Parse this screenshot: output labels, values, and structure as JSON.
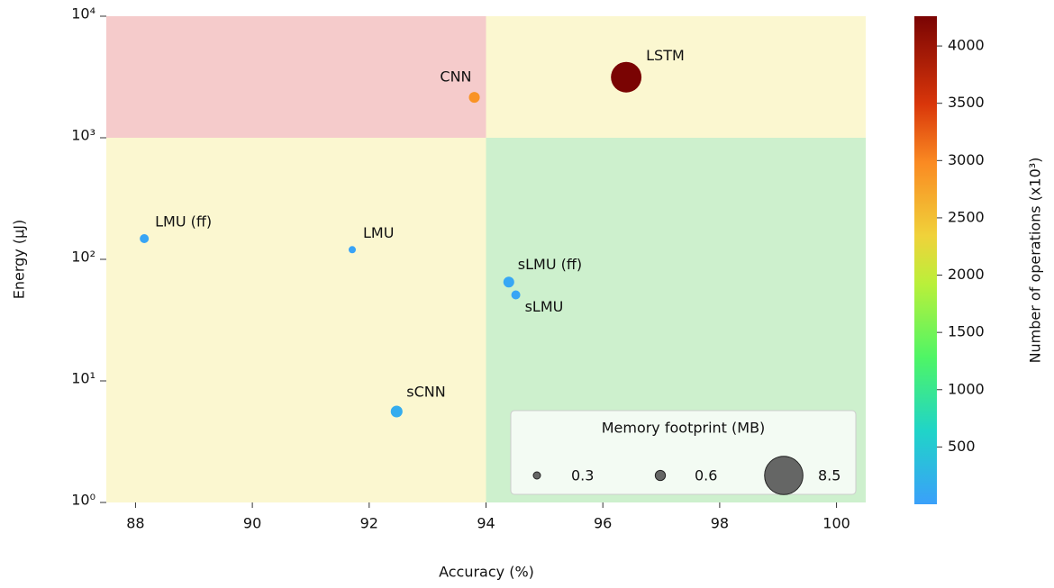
{
  "chart_data": {
    "type": "scatter",
    "x_label": "Accuracy (%)",
    "y_label": "Energy (µJ)",
    "log_y": true,
    "xlim": [
      87.5,
      100.5
    ],
    "ylim": [
      1,
      10000
    ],
    "xticks": [
      88,
      90,
      92,
      94,
      96,
      98,
      100
    ],
    "yticks": [
      {
        "value": 1,
        "label": "10⁰"
      },
      {
        "value": 10,
        "label": "10¹"
      },
      {
        "value": 100,
        "label": "10²"
      },
      {
        "value": 1000,
        "label": "10³"
      },
      {
        "value": 10000,
        "label": "10⁴"
      }
    ],
    "regions": [
      {
        "x": [
          87.5,
          94
        ],
        "y": [
          1000,
          10000
        ],
        "color": "#f5cbcb"
      },
      {
        "x": [
          94,
          100.5
        ],
        "y": [
          1000,
          10000
        ],
        "color": "#fbf7d0"
      },
      {
        "x": [
          87.5,
          94
        ],
        "y": [
          1,
          1000
        ],
        "color": "#fbf7d0"
      },
      {
        "x": [
          94,
          100.5
        ],
        "y": [
          1,
          1000
        ],
        "color": "#cdf0cd"
      }
    ],
    "labels": [
      "LMU (ff)",
      "LMU",
      "CNN",
      "LSTM",
      "sLMU (ff)",
      "sLMU",
      "sCNN"
    ],
    "x": [
      88.15,
      91.71,
      93.8,
      96.4,
      94.39,
      94.51,
      92.47
    ],
    "values": [
      148,
      120,
      2150,
      3150,
      65,
      51,
      5.6
    ],
    "memory": [
      0.47,
      0.3,
      0.68,
      5.4,
      0.68,
      0.47,
      0.8
    ],
    "operations": [
      60,
      40,
      2900,
      4260,
      80,
      60,
      150
    ],
    "colorbar_label": "Number of operations (x10³)",
    "clim": [
      0,
      4260
    ],
    "cticks": [
      500,
      1000,
      1500,
      2000,
      2500,
      3000,
      3500,
      4000
    ],
    "legend": {
      "title": "Memory footprint (MB)",
      "sizes": [
        0.3,
        0.6,
        8.5
      ],
      "color": "#555555",
      "position": "lower right"
    }
  }
}
